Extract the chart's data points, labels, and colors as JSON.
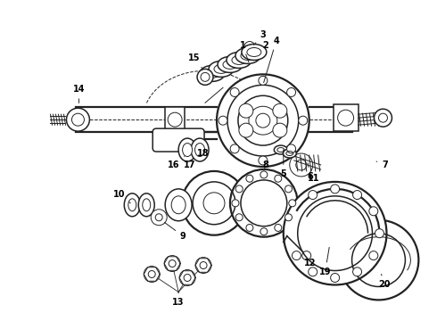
{
  "background_color": "#ffffff",
  "line_color": "#222222",
  "label_color": "#000000",
  "fig_width": 4.9,
  "fig_height": 3.6,
  "dpi": 100,
  "lw_thin": 0.7,
  "lw_med": 1.1,
  "lw_thick": 1.6
}
